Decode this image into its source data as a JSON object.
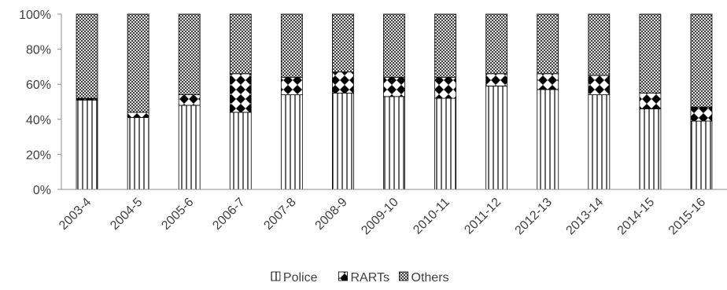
{
  "chart_data": {
    "type": "bar",
    "stacked": true,
    "percent": true,
    "title": "",
    "xlabel": "",
    "ylabel": "",
    "ylim": [
      0,
      100
    ],
    "yticks": [
      "0%",
      "20%",
      "40%",
      "60%",
      "80%",
      "100%"
    ],
    "grid": false,
    "legend_position": "bottom",
    "categories": [
      "2003-4",
      "2004-5",
      "2005-6",
      "2006-7",
      "2007-8",
      "2008-9",
      "2009-10",
      "2010-11",
      "2011-12",
      "2012-13",
      "2013-14",
      "2014-15",
      "2015-16"
    ],
    "series": [
      {
        "name": "Police",
        "pattern": "vertical-lines",
        "values": [
          51,
          41,
          48,
          44,
          54,
          55,
          53,
          52,
          59,
          57,
          54,
          46,
          39
        ]
      },
      {
        "name": "RARTs",
        "pattern": "diamonds",
        "values": [
          1,
          3,
          6,
          22,
          10,
          12,
          11,
          12,
          7,
          9,
          11,
          9,
          8
        ]
      },
      {
        "name": "Others",
        "pattern": "crosshatch",
        "values": [
          48,
          56,
          46,
          34,
          36,
          33,
          36,
          36,
          34,
          34,
          35,
          45,
          53
        ]
      }
    ]
  }
}
